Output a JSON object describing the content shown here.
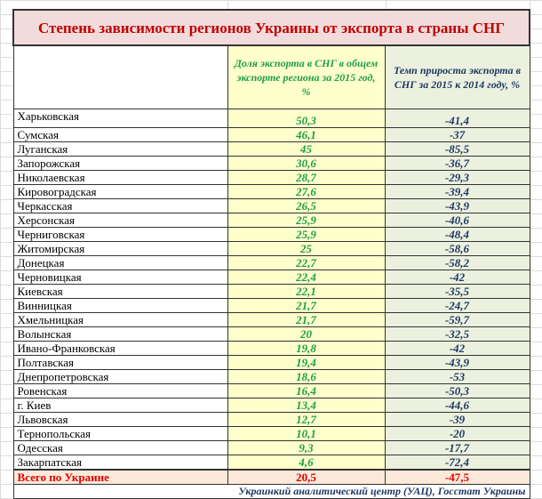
{
  "title": "Степень зависимости регионов Украины от экспорта в страны  СНГ",
  "headers": {
    "region": "",
    "share": "Доля экспорта в СНГ в общем экспорте региона за 2015 год, %",
    "growth": "Темп прироста экспорта в СНГ за 2015 к 2014 году, %"
  },
  "rows": [
    {
      "region": "Харьковская",
      "share": "50,3",
      "growth": "-41,4"
    },
    {
      "region": "Сумская",
      "share": "46,1",
      "growth": "-37"
    },
    {
      "region": "Луганская",
      "share": "45",
      "growth": "-85,5"
    },
    {
      "region": "Запорожская",
      "share": "30,6",
      "growth": "-36,7"
    },
    {
      "region": "Николаевская",
      "share": "28,7",
      "growth": "-29,3"
    },
    {
      "region": "Кировоградская",
      "share": "27,6",
      "growth": "-39,4"
    },
    {
      "region": "Черкасская",
      "share": "26,5",
      "growth": "-43,9"
    },
    {
      "region": "Херсонская",
      "share": "25,9",
      "growth": "-40,6"
    },
    {
      "region": "Черниговская",
      "share": "25,9",
      "growth": "-48,4"
    },
    {
      "region": "Житомирская",
      "share": "25",
      "growth": "-58,6"
    },
    {
      "region": "Донецкая",
      "share": "22,7",
      "growth": "-58,2"
    },
    {
      "region": "Черновицкая",
      "share": "22,4",
      "growth": "-42"
    },
    {
      "region": "Киевская",
      "share": "22,1",
      "growth": "-35,5"
    },
    {
      "region": "Винницкая",
      "share": "21,7",
      "growth": "-24,7"
    },
    {
      "region": "Хмельницкая",
      "share": "21,7",
      "growth": "-59,7"
    },
    {
      "region": "Волынская",
      "share": "20",
      "growth": "-32,5"
    },
    {
      "region": "Ивано-Франковская",
      "share": "19,8",
      "growth": "-42"
    },
    {
      "region": "Полтавская",
      "share": "19,4",
      "growth": "-43,9"
    },
    {
      "region": "Днепропетровская",
      "share": "18,6",
      "growth": "-53"
    },
    {
      "region": "Ровенская",
      "share": "16,4",
      "growth": "-50,3"
    },
    {
      "region": "г. Киев",
      "share": "13,4",
      "growth": "-44,6"
    },
    {
      "region": "Львовская",
      "share": "12,7",
      "growth": "-39"
    },
    {
      "region": "Тернопольская",
      "share": "10,1",
      "growth": "-20"
    },
    {
      "region": "Одесская",
      "share": "9,3",
      "growth": "-17,7"
    },
    {
      "region": "Закарпатская",
      "share": "4,6",
      "growth": "-72,4"
    }
  ],
  "total": {
    "region": "Всего по Украине",
    "share": "20,5",
    "growth": "-47,5"
  },
  "source": "Украинкий аналитический центр (УАЦ), Госстат Украины",
  "colors": {
    "title_bg": "#f2dcdb",
    "title_text": "#c00000",
    "share_bg": "#ffffcc",
    "share_text": "#1e9e48",
    "growth_bg": "#ebf1de",
    "growth_text": "#1f3864",
    "total_bg": "#fde9d9",
    "total_text": "#e00000"
  }
}
